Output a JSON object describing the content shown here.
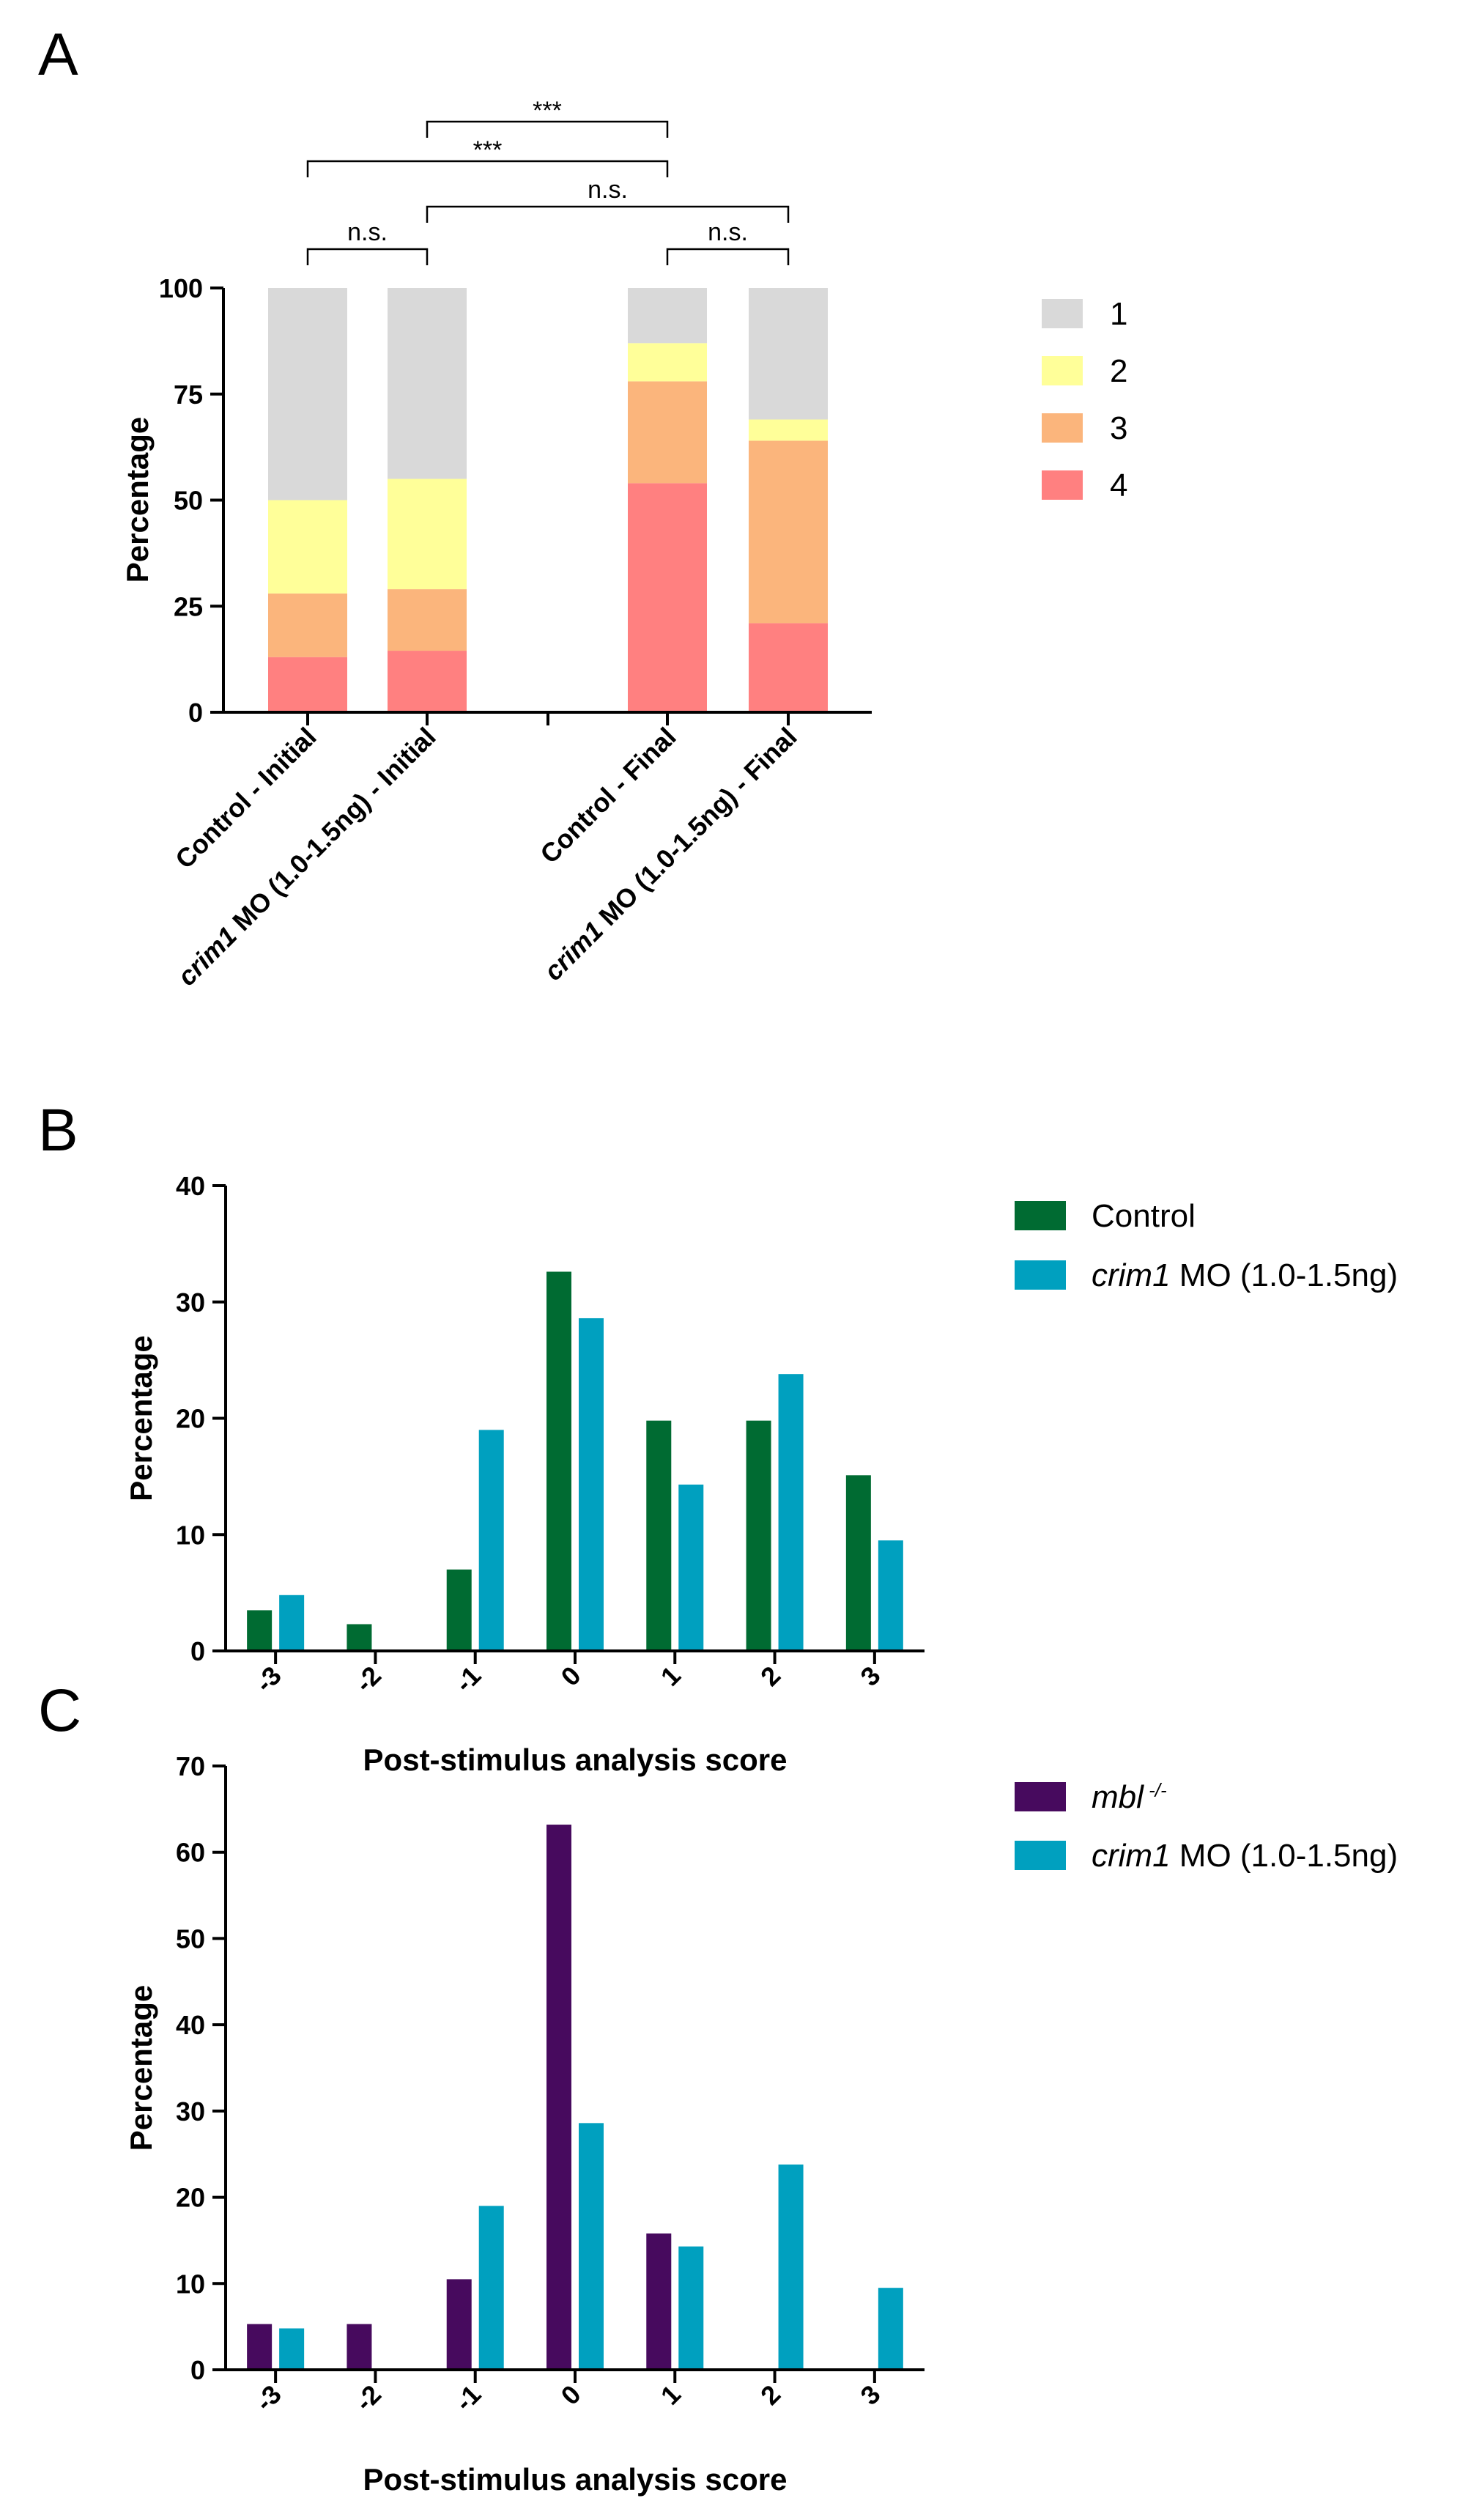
{
  "panels": [
    {
      "letter": "A",
      "chart_data": {
        "type": "bar",
        "stacked": true,
        "categories": [
          "Control - Initial",
          "crim1 MO (1.0-1.5ng) - Initial",
          "Control - Final",
          "crim1 MO (1.0-1.5ng) - Final"
        ],
        "category_label_parts": [
          [
            {
              "text": "Control - Initial",
              "italic": false
            }
          ],
          [
            {
              "text": "crim1",
              "italic": true
            },
            {
              "text": " MO (1.0-1.5ng) - Initial",
              "italic": false
            }
          ],
          [
            {
              "text": "Control - Final",
              "italic": false
            }
          ],
          [
            {
              "text": "crim1",
              "italic": true
            },
            {
              "text": " MO (1.0-1.5ng) - Final",
              "italic": false
            }
          ]
        ],
        "series": [
          {
            "name": "1",
            "color": "#d9d9d9",
            "values": [
              50,
              45,
              13,
              31
            ]
          },
          {
            "name": "2",
            "color": "#ffff99",
            "values": [
              22,
              26,
              9,
              5
            ]
          },
          {
            "name": "3",
            "color": "#fbb57c",
            "values": [
              15,
              14.5,
              24,
              43
            ]
          },
          {
            "name": "4",
            "color": "#ff8080",
            "values": [
              13,
              14.5,
              54,
              21
            ]
          }
        ],
        "stack_order_bottom_to_top": [
          "4",
          "3",
          "2",
          "1"
        ],
        "ylabel": "Percentage",
        "xlabel": "",
        "ylim": [
          0,
          100
        ],
        "yticks": [
          0,
          25,
          50,
          75,
          100
        ],
        "legend_position": "right",
        "grid": false,
        "significance": [
          {
            "from": "Control - Initial",
            "to": "crim1 MO (1.0-1.5ng) - Initial",
            "label": "n.s."
          },
          {
            "from": "crim1 MO (1.0-1.5ng) - Initial",
            "to": "crim1 MO (1.0-1.5ng) - Final",
            "label": "n.s."
          },
          {
            "from": "Control - Initial",
            "to": "Control - Final",
            "label": "***"
          },
          {
            "from": "crim1 MO (1.0-1.5ng) - Initial",
            "to": "Control - Final",
            "label": "***"
          },
          {
            "from": "Control - Final",
            "to": "crim1 MO (1.0-1.5ng) - Final",
            "label": "n.s."
          }
        ]
      }
    },
    {
      "letter": "B",
      "chart_data": {
        "type": "bar",
        "categories": [
          "-3",
          "-2",
          "-1",
          "0",
          "1",
          "2",
          "3"
        ],
        "series": [
          {
            "name": "Control",
            "name_parts": [
              {
                "text": "Control",
                "italic": false
              }
            ],
            "color": "#006b32",
            "values": [
              3.5,
              2.3,
              7,
              32.6,
              19.8,
              19.8,
              15.1
            ]
          },
          {
            "name": "crim1 MO (1.0-1.5ng)",
            "name_parts": [
              {
                "text": "crim1",
                "italic": true
              },
              {
                "text": " MO (1.0-1.5ng)",
                "italic": false
              }
            ],
            "color": "#00a0bf",
            "values": [
              4.8,
              0,
              19,
              28.6,
              14.3,
              23.8,
              9.5
            ]
          }
        ],
        "xlabel": "Post-stimulus analysis score",
        "ylabel": "Percentage",
        "ylim": [
          0,
          40
        ],
        "yticks": [
          0,
          10,
          20,
          30,
          40
        ],
        "legend_position": "right",
        "grid": false
      }
    },
    {
      "letter": "C",
      "chart_data": {
        "type": "bar",
        "categories": [
          "-3",
          "-2",
          "-1",
          "0",
          "1",
          "2",
          "3"
        ],
        "series": [
          {
            "name": "mbl -/-",
            "name_parts": [
              {
                "text": "mbl",
                "italic": true
              },
              {
                "text": " -/-",
                "italic": true,
                "superscript": true
              }
            ],
            "color": "#470a5e",
            "values": [
              5.3,
              5.3,
              10.5,
              63.2,
              15.8,
              0,
              0
            ]
          },
          {
            "name": "crim1 MO (1.0-1.5ng)",
            "name_parts": [
              {
                "text": "crim1",
                "italic": true
              },
              {
                "text": " MO (1.0-1.5ng)",
                "italic": false
              }
            ],
            "color": "#00a0bf",
            "values": [
              4.8,
              0,
              19,
              28.6,
              14.3,
              23.8,
              9.5
            ]
          }
        ],
        "xlabel": "Post-stimulus analysis score",
        "ylabel": "Percentage",
        "ylim": [
          0,
          70
        ],
        "yticks": [
          0,
          10,
          20,
          30,
          40,
          50,
          60,
          70
        ],
        "legend_position": "right",
        "grid": false
      }
    }
  ]
}
